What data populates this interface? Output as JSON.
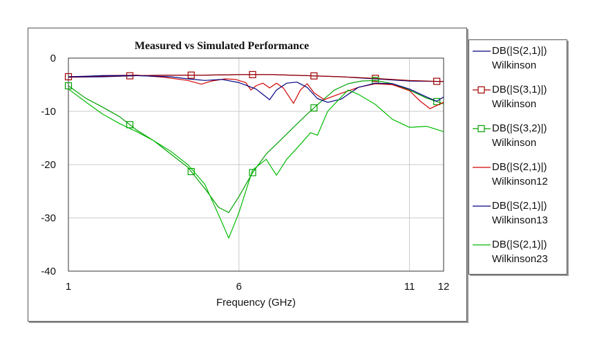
{
  "chart_data": {
    "type": "line",
    "title": "Measured vs Simulated Performance",
    "xlabel": "Frequency (GHz)",
    "ylabel": "",
    "xlim": [
      1,
      12
    ],
    "ylim": [
      -40,
      0
    ],
    "x_ticks": [
      {
        "value": 1,
        "label": "1"
      },
      {
        "value": 6,
        "label": "6"
      },
      {
        "value": 11,
        "label": "11"
      },
      {
        "value": 12,
        "label": "12"
      }
    ],
    "y_ticks": [
      {
        "value": 0,
        "label": "0"
      },
      {
        "value": -10,
        "label": "-10"
      },
      {
        "value": -20,
        "label": "-20"
      },
      {
        "value": -30,
        "label": "-30"
      },
      {
        "value": -40,
        "label": "-40"
      }
    ],
    "grid": true,
    "legend_position": "right",
    "series": [
      {
        "name": "DB(|S(2,1)|)",
        "group": "Wilkinson",
        "color": "#000080",
        "marker": "none",
        "points": [
          [
            1,
            -3.6
          ],
          [
            2,
            -3.5
          ],
          [
            3,
            -3.3
          ],
          [
            4,
            -3.2
          ],
          [
            5,
            -3.2
          ],
          [
            6,
            -3.1
          ],
          [
            7,
            -3.1
          ],
          [
            8,
            -3.3
          ],
          [
            9,
            -3.5
          ],
          [
            10,
            -3.9
          ],
          [
            11,
            -4.3
          ],
          [
            12,
            -4.4
          ]
        ]
      },
      {
        "name": "DB(|S(3,1)|)",
        "group": "Wilkinson",
        "color": "#a00000",
        "marker": "square",
        "points": [
          [
            1,
            -3.5
          ],
          [
            2,
            -3.4
          ],
          [
            3,
            -3.3
          ],
          [
            4,
            -3.2
          ],
          [
            5,
            -3.2
          ],
          [
            6,
            -3.1
          ],
          [
            7,
            -3.1
          ],
          [
            8,
            -3.3
          ],
          [
            9,
            -3.5
          ],
          [
            10,
            -3.8
          ],
          [
            11,
            -4.2
          ],
          [
            12,
            -4.4
          ]
        ],
        "markers_at": [
          1,
          2.8,
          4.6,
          6.4,
          8.2,
          10,
          11.8
        ]
      },
      {
        "name": "DB(|S(3,2)|)",
        "group": "Wilkinson",
        "color": "#00a000",
        "marker": "square",
        "points": [
          [
            1,
            -5.2
          ],
          [
            1.5,
            -7.5
          ],
          [
            2,
            -9.2
          ],
          [
            2.5,
            -11
          ],
          [
            3,
            -13.5
          ],
          [
            3.5,
            -15.5
          ],
          [
            4,
            -18
          ],
          [
            4.5,
            -20.5
          ],
          [
            5,
            -24.5
          ],
          [
            5.4,
            -28
          ],
          [
            5.7,
            -29
          ],
          [
            6,
            -26
          ],
          [
            6.4,
            -21.5
          ],
          [
            6.8,
            -18
          ],
          [
            7.2,
            -15.5
          ],
          [
            7.6,
            -13
          ],
          [
            8,
            -10.5
          ],
          [
            8.4,
            -8.2
          ],
          [
            8.8,
            -6
          ],
          [
            9.2,
            -4.8
          ],
          [
            9.6,
            -4.3
          ],
          [
            10,
            -4.2
          ],
          [
            10.5,
            -4.8
          ],
          [
            11,
            -6
          ],
          [
            11.5,
            -7.5
          ],
          [
            12,
            -8.6
          ]
        ],
        "markers_at": [
          1,
          2.8,
          4.6,
          6.4,
          8.2,
          10,
          11.8
        ]
      },
      {
        "name": "DB(|S(2,1)|)",
        "group": "Wilkinson12",
        "color": "#d00000",
        "marker": "none",
        "points": [
          [
            1,
            -3.6
          ],
          [
            2,
            -3.3
          ],
          [
            3,
            -3.2
          ],
          [
            3.8,
            -3.6
          ],
          [
            4.5,
            -4.2
          ],
          [
            4.9,
            -4.9
          ],
          [
            5.2,
            -4.3
          ],
          [
            5.6,
            -3.9
          ],
          [
            5.9,
            -4
          ],
          [
            6.2,
            -4.6
          ],
          [
            6.35,
            -6
          ],
          [
            6.5,
            -5.2
          ],
          [
            6.7,
            -4.7
          ],
          [
            6.9,
            -5.6
          ],
          [
            7.1,
            -4.7
          ],
          [
            7.3,
            -5.6
          ],
          [
            7.6,
            -8.5
          ],
          [
            7.8,
            -6
          ],
          [
            8.0,
            -4.8
          ],
          [
            8.2,
            -6.5
          ],
          [
            8.5,
            -7.8
          ],
          [
            9,
            -6.6
          ],
          [
            9.5,
            -5.5
          ],
          [
            10,
            -4.8
          ],
          [
            10.5,
            -5
          ],
          [
            11,
            -6.1
          ],
          [
            11.3,
            -8
          ],
          [
            11.6,
            -9.5
          ],
          [
            12,
            -8.3
          ]
        ]
      },
      {
        "name": "DB(|S(2,1)|)",
        "group": "Wilkinson13",
        "color": "#000080",
        "marker": "none",
        "points": [
          [
            1,
            -3.5
          ],
          [
            2,
            -3.3
          ],
          [
            3,
            -3.3
          ],
          [
            4,
            -3.5
          ],
          [
            4.5,
            -3.9
          ],
          [
            5,
            -4.2
          ],
          [
            5.5,
            -4
          ],
          [
            6,
            -4.6
          ],
          [
            6.5,
            -5.8
          ],
          [
            6.9,
            -7.8
          ],
          [
            7.1,
            -6
          ],
          [
            7.4,
            -4.7
          ],
          [
            7.7,
            -4.5
          ],
          [
            8.0,
            -5.5
          ],
          [
            8.3,
            -7.6
          ],
          [
            8.6,
            -8.3
          ],
          [
            9,
            -7.7
          ],
          [
            9.5,
            -5.5
          ],
          [
            10,
            -4.7
          ],
          [
            10.5,
            -4.8
          ],
          [
            11,
            -5.8
          ],
          [
            11.5,
            -7.3
          ],
          [
            11.8,
            -8.1
          ],
          [
            12,
            -7.3
          ]
        ]
      },
      {
        "name": "DB(|S(2,1)|)",
        "group": "Wilkinson23",
        "color": "#00bb00",
        "marker": "none",
        "points": [
          [
            1,
            -5.8
          ],
          [
            1.5,
            -8.2
          ],
          [
            2,
            -10.5
          ],
          [
            2.5,
            -12.3
          ],
          [
            3,
            -13.8
          ],
          [
            3.5,
            -15.5
          ],
          [
            4,
            -17.5
          ],
          [
            4.5,
            -20
          ],
          [
            5,
            -23.7
          ],
          [
            5.5,
            -30.8
          ],
          [
            5.7,
            -33.8
          ],
          [
            6.0,
            -29
          ],
          [
            6.4,
            -21
          ],
          [
            6.8,
            -19
          ],
          [
            7.1,
            -22
          ],
          [
            7.4,
            -19
          ],
          [
            7.8,
            -16.2
          ],
          [
            8.1,
            -14
          ],
          [
            8.3,
            -14.5
          ],
          [
            8.6,
            -10
          ],
          [
            9,
            -7.3
          ],
          [
            9.2,
            -6
          ],
          [
            9.5,
            -6.8
          ],
          [
            10,
            -8.7
          ],
          [
            10.5,
            -11.5
          ],
          [
            11,
            -13
          ],
          [
            11.5,
            -12.8
          ],
          [
            12,
            -13.8
          ]
        ]
      }
    ]
  }
}
